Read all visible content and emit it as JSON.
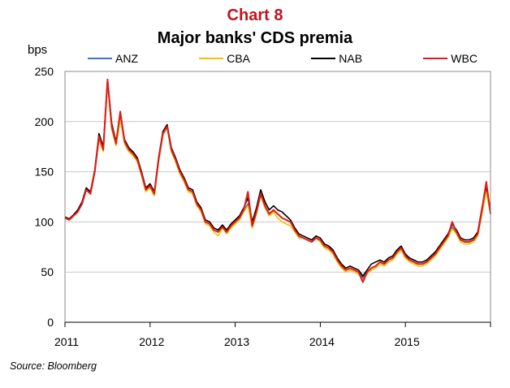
{
  "header": {
    "chart_number": "Chart 8",
    "title": "Major banks' CDS premia"
  },
  "footer": {
    "source": "Source: Bloomberg"
  },
  "colors": {
    "ANZ": "#3a78c2",
    "CBA": "#f5c200",
    "NAB": "#000000",
    "WBC": "#e31b1b",
    "grid": "#c8c8c8",
    "title_accent": "#c0141c"
  },
  "chart_data": {
    "type": "line",
    "title": "Major banks' CDS premia",
    "ylabel": "bps",
    "xlabel": "",
    "ylim": [
      0,
      250
    ],
    "yticks": [
      0,
      50,
      100,
      150,
      200,
      250
    ],
    "xlim": [
      2011.0,
      2016.0
    ],
    "xticks": [
      2011,
      2012,
      2013,
      2014,
      2015
    ],
    "xtick_labels": [
      "2011",
      "2012",
      "2013",
      "2014",
      "2015"
    ],
    "grid": true,
    "legend_position": "top",
    "series_names": [
      "ANZ",
      "CBA",
      "NAB",
      "WBC"
    ],
    "x": [
      2011.0,
      2011.05,
      2011.1,
      2011.15,
      2011.2,
      2011.25,
      2011.3,
      2011.35,
      2011.4,
      2011.45,
      2011.5,
      2011.55,
      2011.6,
      2011.65,
      2011.7,
      2011.75,
      2011.8,
      2011.85,
      2011.9,
      2011.95,
      2012.0,
      2012.05,
      2012.1,
      2012.15,
      2012.2,
      2012.25,
      2012.3,
      2012.35,
      2012.4,
      2012.45,
      2012.5,
      2012.55,
      2012.6,
      2012.65,
      2012.7,
      2012.75,
      2012.8,
      2012.85,
      2012.9,
      2012.95,
      2013.0,
      2013.05,
      2013.1,
      2013.15,
      2013.2,
      2013.25,
      2013.3,
      2013.35,
      2013.4,
      2013.45,
      2013.5,
      2013.55,
      2013.6,
      2013.65,
      2013.7,
      2013.75,
      2013.8,
      2013.85,
      2013.9,
      2013.95,
      2014.0,
      2014.05,
      2014.1,
      2014.15,
      2014.2,
      2014.25,
      2014.3,
      2014.35,
      2014.4,
      2014.45,
      2014.5,
      2014.55,
      2014.6,
      2014.65,
      2014.7,
      2014.75,
      2014.8,
      2014.85,
      2014.9,
      2014.95,
      2015.0,
      2015.05,
      2015.1,
      2015.15,
      2015.2,
      2015.25,
      2015.3,
      2015.35,
      2015.4,
      2015.45,
      2015.5,
      2015.55,
      2015.6,
      2015.65,
      2015.7,
      2015.75,
      2015.8,
      2015.85,
      2015.9,
      2015.95,
      2016.0
    ],
    "series": [
      {
        "name": "ANZ",
        "values": [
          104,
          102,
          106,
          110,
          118,
          132,
          128,
          150,
          185,
          172,
          240,
          195,
          178,
          205,
          180,
          172,
          168,
          162,
          148,
          132,
          136,
          128,
          162,
          188,
          195,
          172,
          162,
          150,
          142,
          132,
          130,
          118,
          112,
          100,
          98,
          92,
          90,
          95,
          90,
          96,
          100,
          104,
          112,
          118,
          96,
          110,
          128,
          116,
          108,
          112,
          108,
          104,
          102,
          100,
          92,
          86,
          84,
          82,
          80,
          84,
          82,
          76,
          74,
          70,
          62,
          56,
          52,
          54,
          52,
          50,
          44,
          50,
          54,
          56,
          60,
          58,
          62,
          64,
          70,
          74,
          66,
          62,
          60,
          58,
          58,
          60,
          64,
          68,
          74,
          80,
          86,
          95,
          90,
          82,
          80,
          80,
          82,
          88,
          110,
          132,
          110
        ]
      },
      {
        "name": "CBA",
        "values": [
          104,
          102,
          106,
          110,
          118,
          132,
          128,
          150,
          182,
          170,
          238,
          192,
          176,
          202,
          178,
          170,
          166,
          160,
          146,
          130,
          134,
          126,
          160,
          186,
          194,
          170,
          160,
          148,
          140,
          130,
          128,
          116,
          110,
          98,
          96,
          90,
          86,
          94,
          88,
          94,
          98,
          102,
          110,
          116,
          94,
          108,
          126,
          114,
          106,
          110,
          104,
          100,
          98,
          96,
          90,
          84,
          84,
          82,
          80,
          84,
          80,
          74,
          72,
          68,
          60,
          54,
          50,
          52,
          50,
          48,
          42,
          48,
          52,
          54,
          58,
          56,
          60,
          62,
          68,
          72,
          64,
          60,
          58,
          56,
          56,
          58,
          62,
          66,
          72,
          78,
          84,
          93,
          88,
          80,
          78,
          78,
          80,
          86,
          108,
          130,
          108
        ]
      },
      {
        "name": "NAB",
        "values": [
          105,
          103,
          107,
          112,
          120,
          134,
          130,
          152,
          188,
          175,
          242,
          198,
          180,
          208,
          182,
          174,
          170,
          164,
          150,
          134,
          138,
          130,
          164,
          190,
          197,
          174,
          164,
          152,
          144,
          134,
          132,
          120,
          114,
          102,
          100,
          94,
          92,
          97,
          92,
          98,
          102,
          106,
          114,
          124,
          100,
          114,
          132,
          120,
          112,
          116,
          112,
          110,
          106,
          102,
          94,
          88,
          86,
          84,
          82,
          86,
          84,
          78,
          76,
          72,
          64,
          58,
          54,
          56,
          54,
          52,
          46,
          52,
          58,
          60,
          62,
          60,
          64,
          66,
          72,
          76,
          68,
          64,
          62,
          60,
          60,
          62,
          66,
          70,
          76,
          82,
          88,
          98,
          92,
          84,
          82,
          82,
          84,
          90,
          114,
          136,
          112
        ]
      },
      {
        "name": "WBC",
        "values": [
          104,
          102,
          106,
          110,
          118,
          132,
          128,
          150,
          185,
          172,
          242,
          195,
          178,
          210,
          180,
          172,
          168,
          162,
          148,
          132,
          136,
          128,
          162,
          188,
          195,
          172,
          162,
          150,
          142,
          132,
          130,
          118,
          112,
          100,
          98,
          92,
          90,
          95,
          90,
          96,
          100,
          104,
          112,
          130,
          96,
          110,
          128,
          116,
          108,
          112,
          108,
          104,
          102,
          100,
          92,
          86,
          84,
          82,
          80,
          84,
          82,
          76,
          74,
          70,
          62,
          56,
          52,
          54,
          52,
          50,
          40,
          50,
          54,
          56,
          60,
          58,
          62,
          64,
          70,
          74,
          66,
          62,
          60,
          58,
          58,
          60,
          64,
          68,
          74,
          80,
          86,
          100,
          90,
          82,
          80,
          80,
          82,
          88,
          112,
          140,
          108
        ]
      }
    ]
  }
}
